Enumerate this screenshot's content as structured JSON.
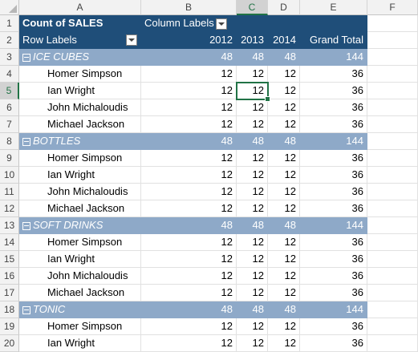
{
  "columns": [
    "A",
    "B",
    "C",
    "D",
    "E",
    "F"
  ],
  "selected_column": "C",
  "selected_row": "5",
  "pivot": {
    "measure": "Count of SALES",
    "column_labels": "Column Labels",
    "row_labels": "Row Labels",
    "years": [
      "2012",
      "2013",
      "2014"
    ],
    "grand_total_label": "Grand Total"
  },
  "rows": [
    {
      "n": "1",
      "type": "h1"
    },
    {
      "n": "2",
      "type": "h2"
    },
    {
      "n": "3",
      "type": "group",
      "label": "ICE CUBES",
      "v": [
        "48",
        "48",
        "48",
        "144"
      ]
    },
    {
      "n": "4",
      "type": "item",
      "label": "Homer Simpson",
      "v": [
        "12",
        "12",
        "12",
        "36"
      ]
    },
    {
      "n": "5",
      "type": "item",
      "label": "Ian Wright",
      "v": [
        "12",
        "12",
        "12",
        "36"
      ]
    },
    {
      "n": "6",
      "type": "item",
      "label": "John Michaloudis",
      "v": [
        "12",
        "12",
        "12",
        "36"
      ]
    },
    {
      "n": "7",
      "type": "item",
      "label": "Michael Jackson",
      "v": [
        "12",
        "12",
        "12",
        "36"
      ]
    },
    {
      "n": "8",
      "type": "group",
      "label": "BOTTLES",
      "v": [
        "48",
        "48",
        "48",
        "144"
      ]
    },
    {
      "n": "9",
      "type": "item",
      "label": "Homer Simpson",
      "v": [
        "12",
        "12",
        "12",
        "36"
      ]
    },
    {
      "n": "10",
      "type": "item",
      "label": "Ian Wright",
      "v": [
        "12",
        "12",
        "12",
        "36"
      ]
    },
    {
      "n": "11",
      "type": "item",
      "label": "John Michaloudis",
      "v": [
        "12",
        "12",
        "12",
        "36"
      ]
    },
    {
      "n": "12",
      "type": "item",
      "label": "Michael Jackson",
      "v": [
        "12",
        "12",
        "12",
        "36"
      ]
    },
    {
      "n": "13",
      "type": "group",
      "label": "SOFT DRINKS",
      "v": [
        "48",
        "48",
        "48",
        "144"
      ]
    },
    {
      "n": "14",
      "type": "item",
      "label": "Homer Simpson",
      "v": [
        "12",
        "12",
        "12",
        "36"
      ]
    },
    {
      "n": "15",
      "type": "item",
      "label": "Ian Wright",
      "v": [
        "12",
        "12",
        "12",
        "36"
      ]
    },
    {
      "n": "16",
      "type": "item",
      "label": "John Michaloudis",
      "v": [
        "12",
        "12",
        "12",
        "36"
      ]
    },
    {
      "n": "17",
      "type": "item",
      "label": "Michael Jackson",
      "v": [
        "12",
        "12",
        "12",
        "36"
      ]
    },
    {
      "n": "18",
      "type": "group",
      "label": "TONIC",
      "v": [
        "48",
        "48",
        "48",
        "144"
      ]
    },
    {
      "n": "19",
      "type": "item",
      "label": "Homer Simpson",
      "v": [
        "12",
        "12",
        "12",
        "36"
      ]
    },
    {
      "n": "20",
      "type": "item",
      "label": "Ian Wright",
      "v": [
        "12",
        "12",
        "12",
        "36"
      ]
    }
  ]
}
